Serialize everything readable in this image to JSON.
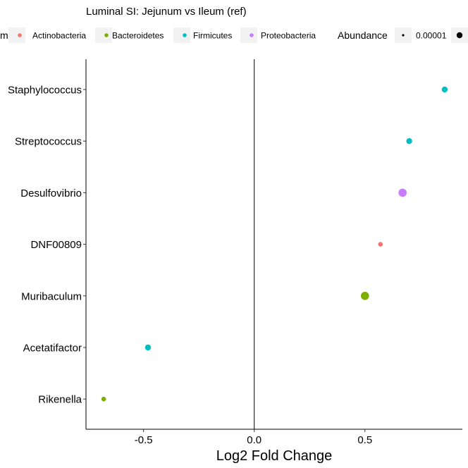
{
  "chart_data": {
    "type": "scatter",
    "title": "Luminal SI: Jejunum vs Ileum (ref)",
    "xlabel": "Log2 Fold Change",
    "ylabel": "",
    "xlim": [
      -0.76,
      0.94
    ],
    "xticks": [
      -0.5,
      0.0,
      0.5
    ],
    "xtick_labels": [
      "-0.5",
      "0.0",
      "0.5"
    ],
    "vline_x": 0,
    "grid": false,
    "legend_position": "top",
    "categories": [
      "Staphylococcus",
      "Streptococcus",
      "Desulfovibrio",
      "DNF00809",
      "Muribaculum",
      "Acetatifactor",
      "Rikenella"
    ],
    "points": [
      {
        "genus": "Staphylococcus",
        "x": 0.86,
        "phylum": "Firmicutes",
        "abundance": "small"
      },
      {
        "genus": "Streptococcus",
        "x": 0.7,
        "phylum": "Firmicutes",
        "abundance": "small"
      },
      {
        "genus": "Desulfovibrio",
        "x": 0.67,
        "phylum": "Proteobacteria",
        "abundance": "large"
      },
      {
        "genus": "DNF00809",
        "x": 0.57,
        "phylum": "Actinobacteria",
        "abundance": "tiny"
      },
      {
        "genus": "Muribaculum",
        "x": 0.5,
        "phylum": "Bacteroidetes",
        "abundance": "large"
      },
      {
        "genus": "Acetatifactor",
        "x": -0.48,
        "phylum": "Firmicutes",
        "abundance": "small"
      },
      {
        "genus": "Rikenella",
        "x": -0.68,
        "phylum": "Bacteroidetes",
        "abundance": "tiny"
      }
    ],
    "legend": {
      "color_title_visible": "m",
      "color_entries": [
        {
          "label": "Actinobacteria",
          "color": "#F8766D"
        },
        {
          "label": "Bacteroidetes",
          "color": "#7CAE00"
        },
        {
          "label": "Firmicutes",
          "color": "#00BFC4"
        },
        {
          "label": "Proteobacteria",
          "color": "#C77CFF"
        }
      ],
      "size_title": "Abundance",
      "size_entries": [
        {
          "label": "0.00001",
          "size": "tiny"
        },
        {
          "label": "",
          "size": "large"
        }
      ]
    }
  }
}
